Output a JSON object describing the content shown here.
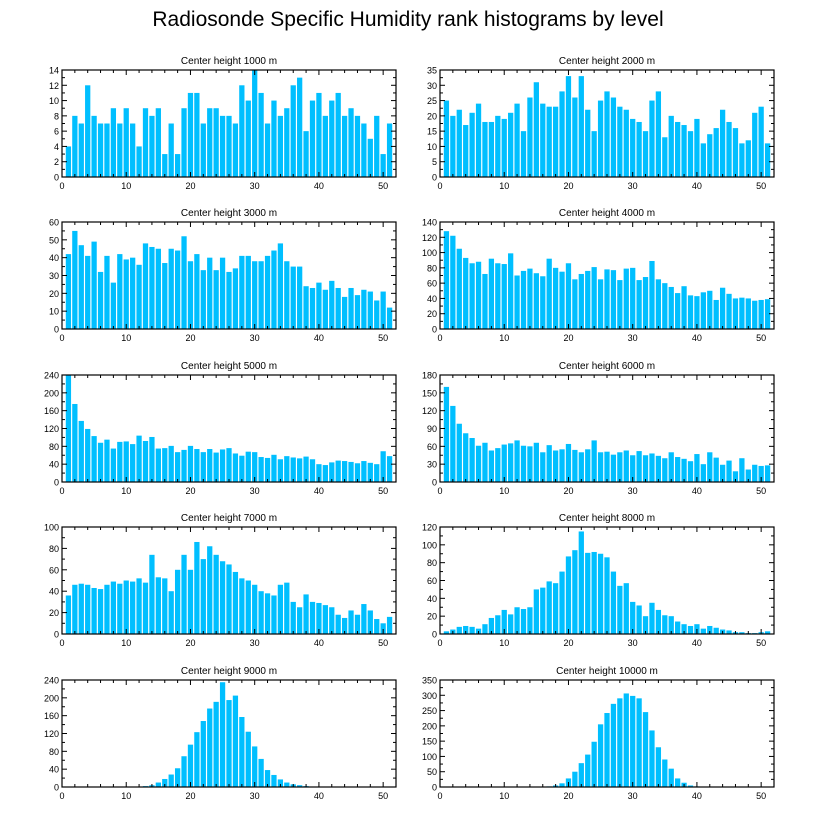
{
  "title": "Radiosonde Specific Humidity rank histograms by level",
  "chart_data": [
    {
      "type": "bar",
      "title": "Center height 1000 m",
      "xlim": [
        0,
        52
      ],
      "ylim": [
        0,
        14
      ],
      "xticks": [
        0,
        10,
        20,
        30,
        40,
        50
      ],
      "yticks": [
        0,
        2,
        4,
        6,
        8,
        10,
        12,
        14
      ],
      "color": "#00bfff",
      "values": [
        4,
        8,
        7,
        12,
        8,
        7,
        7,
        9,
        7,
        9,
        7,
        4,
        9,
        8,
        9,
        3,
        7,
        3,
        9,
        11,
        11,
        7,
        9,
        9,
        8,
        8,
        7,
        12,
        10,
        14,
        11,
        7,
        10,
        8,
        9,
        12,
        13,
        6,
        10,
        11,
        8,
        10,
        11,
        8,
        9,
        8,
        7,
        5,
        8,
        3,
        7
      ]
    },
    {
      "type": "bar",
      "title": "Center height 2000 m",
      "xlim": [
        0,
        52
      ],
      "ylim": [
        0,
        35
      ],
      "xticks": [
        0,
        10,
        20,
        30,
        40,
        50
      ],
      "yticks": [
        0,
        5,
        10,
        15,
        20,
        25,
        30,
        35
      ],
      "color": "#00bfff",
      "values": [
        25,
        20,
        22,
        17,
        21,
        24,
        18,
        18,
        20,
        19,
        21,
        24,
        15,
        26,
        31,
        24,
        23,
        23,
        28,
        33,
        26,
        33,
        22,
        15,
        25,
        28,
        26,
        23,
        22,
        19,
        18,
        15,
        25,
        28,
        13,
        20,
        18,
        17,
        15,
        19,
        11,
        14,
        16,
        22,
        18,
        16,
        11,
        12,
        21,
        23,
        11
      ]
    },
    {
      "type": "bar",
      "title": "Center height 3000 m",
      "xlim": [
        0,
        52
      ],
      "ylim": [
        0,
        60
      ],
      "xticks": [
        0,
        10,
        20,
        30,
        40,
        50
      ],
      "yticks": [
        0,
        10,
        20,
        30,
        40,
        50,
        60
      ],
      "color": "#00bfff",
      "values": [
        42,
        55,
        47,
        41,
        49,
        32,
        41,
        26,
        42,
        39,
        40,
        36,
        48,
        46,
        45,
        37,
        45,
        44,
        52,
        38,
        42,
        33,
        40,
        33,
        40,
        32,
        34,
        41,
        41,
        38,
        38,
        41,
        44,
        48,
        38,
        35,
        35,
        24,
        23,
        26,
        22,
        27,
        23,
        18,
        23,
        19,
        22,
        21,
        16,
        21,
        12
      ]
    },
    {
      "type": "bar",
      "title": "Center height 4000 m",
      "xlim": [
        0,
        52
      ],
      "ylim": [
        0,
        140
      ],
      "xticks": [
        0,
        10,
        20,
        30,
        40,
        50
      ],
      "yticks": [
        0,
        20,
        40,
        60,
        80,
        100,
        120,
        140
      ],
      "color": "#00bfff",
      "values": [
        128,
        122,
        105,
        93,
        86,
        88,
        72,
        92,
        86,
        85,
        99,
        70,
        76,
        79,
        73,
        69,
        92,
        80,
        75,
        86,
        65,
        72,
        76,
        81,
        65,
        78,
        77,
        64,
        79,
        80,
        64,
        68,
        89,
        65,
        60,
        55,
        47,
        56,
        44,
        43,
        48,
        50,
        38,
        54,
        46,
        40,
        41,
        40,
        37,
        38,
        39
      ]
    },
    {
      "type": "bar",
      "title": "Center height 5000 m",
      "xlim": [
        0,
        52
      ],
      "ylim": [
        0,
        240
      ],
      "xticks": [
        0,
        10,
        20,
        30,
        40,
        50
      ],
      "yticks": [
        0,
        40,
        80,
        120,
        160,
        200,
        240
      ],
      "color": "#00bfff",
      "values": [
        240,
        175,
        137,
        119,
        103,
        88,
        95,
        75,
        90,
        91,
        85,
        104,
        92,
        101,
        75,
        76,
        81,
        67,
        72,
        81,
        74,
        67,
        74,
        66,
        73,
        76,
        64,
        59,
        68,
        67,
        56,
        54,
        61,
        51,
        58,
        55,
        53,
        57,
        51,
        40,
        38,
        44,
        48,
        47,
        45,
        42,
        47,
        43,
        40,
        69,
        58
      ]
    },
    {
      "type": "bar",
      "title": "Center height 6000 m",
      "xlim": [
        0,
        52
      ],
      "ylim": [
        0,
        180
      ],
      "xticks": [
        0,
        10,
        20,
        30,
        40,
        50
      ],
      "yticks": [
        0,
        30,
        60,
        90,
        120,
        150,
        180
      ],
      "color": "#00bfff",
      "values": [
        160,
        128,
        98,
        82,
        74,
        61,
        66,
        53,
        57,
        63,
        65,
        70,
        61,
        60,
        66,
        50,
        62,
        53,
        55,
        64,
        54,
        50,
        55,
        70,
        50,
        51,
        46,
        50,
        53,
        45,
        52,
        45,
        48,
        44,
        40,
        50,
        42,
        39,
        35,
        47,
        30,
        50,
        41,
        29,
        36,
        18,
        40,
        21,
        29,
        27,
        28
      ]
    },
    {
      "type": "bar",
      "title": "Center height 7000 m",
      "xlim": [
        0,
        52
      ],
      "ylim": [
        0,
        100
      ],
      "xticks": [
        0,
        10,
        20,
        30,
        40,
        50
      ],
      "yticks": [
        0,
        20,
        40,
        60,
        80,
        100
      ],
      "color": "#00bfff",
      "values": [
        36,
        46,
        47,
        46,
        43,
        42,
        46,
        49,
        47,
        50,
        49,
        52,
        48,
        74,
        53,
        52,
        40,
        60,
        74,
        60,
        86,
        70,
        82,
        74,
        68,
        65,
        58,
        52,
        50,
        46,
        40,
        38,
        36,
        46,
        48,
        30,
        25,
        37,
        30,
        29,
        27,
        25,
        18,
        15,
        22,
        18,
        28,
        22,
        14,
        10,
        16
      ]
    },
    {
      "type": "bar",
      "title": "Center height 8000 m",
      "xlim": [
        0,
        52
      ],
      "ylim": [
        0,
        120
      ],
      "xticks": [
        0,
        10,
        20,
        30,
        40,
        50
      ],
      "yticks": [
        0,
        20,
        40,
        60,
        80,
        100,
        120
      ],
      "color": "#00bfff",
      "values": [
        3,
        5,
        8,
        9,
        8,
        6,
        11,
        18,
        21,
        27,
        22,
        30,
        28,
        30,
        50,
        52,
        59,
        57,
        70,
        87,
        94,
        115,
        91,
        92,
        90,
        86,
        70,
        54,
        57,
        36,
        32,
        20,
        35,
        27,
        21,
        20,
        14,
        11,
        9,
        11,
        6,
        9,
        7,
        5,
        4,
        2,
        2,
        1,
        1,
        2,
        3
      ]
    },
    {
      "type": "bar",
      "title": "Center height 9000 m",
      "xlim": [
        0,
        52
      ],
      "ylim": [
        0,
        240
      ],
      "xticks": [
        0,
        10,
        20,
        30,
        40,
        50
      ],
      "yticks": [
        0,
        40,
        80,
        120,
        160,
        200,
        240
      ],
      "color": "#00bfff",
      "values": [
        0,
        0,
        0,
        0,
        0,
        0,
        0,
        0,
        0,
        0,
        0,
        1,
        2,
        4,
        10,
        18,
        28,
        42,
        69,
        95,
        123,
        148,
        176,
        191,
        235,
        195,
        205,
        157,
        124,
        91,
        63,
        38,
        27,
        17,
        10,
        6,
        4,
        2,
        1,
        1,
        0,
        0,
        0,
        0,
        0,
        0,
        0,
        0,
        0,
        0,
        1
      ]
    },
    {
      "type": "bar",
      "title": "Center height 10000 m",
      "xlim": [
        0,
        52
      ],
      "ylim": [
        0,
        350
      ],
      "xticks": [
        0,
        10,
        20,
        30,
        40,
        50
      ],
      "yticks": [
        0,
        50,
        100,
        150,
        200,
        250,
        300,
        350
      ],
      "color": "#00bfff",
      "values": [
        0,
        0,
        0,
        0,
        0,
        0,
        0,
        0,
        0,
        0,
        0,
        0,
        0,
        0,
        0,
        1,
        2,
        5,
        12,
        28,
        50,
        78,
        106,
        148,
        205,
        242,
        272,
        290,
        306,
        298,
        290,
        245,
        185,
        130,
        90,
        60,
        28,
        14,
        5,
        2,
        1,
        0,
        0,
        0,
        0,
        0,
        0,
        0,
        0,
        0,
        0
      ]
    }
  ]
}
